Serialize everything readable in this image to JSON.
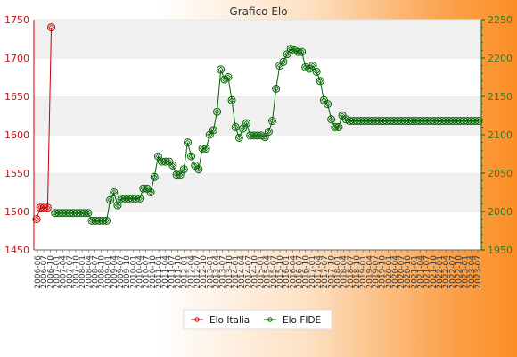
{
  "chart_data": {
    "type": "line",
    "title": "Grafico Elo",
    "y_left": {
      "ylim": [
        1450,
        1750
      ],
      "ticks": [
        "1450",
        "1500",
        "1550",
        "1600",
        "1650",
        "1700",
        "1750"
      ],
      "color": "#cc0000"
    },
    "y_right": {
      "ylim": [
        1950,
        2250
      ],
      "ticks": [
        "1950",
        "2000",
        "2050",
        "2100",
        "2150",
        "2200",
        "2250"
      ],
      "color": "#006400"
    },
    "x_count": 121,
    "series": [
      {
        "name": "Elo Italia",
        "axis": "left",
        "color": "#cc0000",
        "points": [
          [
            0,
            1490
          ],
          [
            1,
            1505
          ],
          [
            2,
            1505
          ],
          [
            3,
            1505
          ],
          [
            4,
            1740
          ]
        ]
      },
      {
        "name": "Elo FIDE",
        "axis": "right",
        "color": "#006400",
        "points": [
          [
            5,
            1998
          ],
          [
            6,
            1998
          ],
          [
            7,
            1998
          ],
          [
            8,
            1998
          ],
          [
            9,
            1998
          ],
          [
            10,
            1998
          ],
          [
            11,
            1998
          ],
          [
            12,
            1998
          ],
          [
            13,
            1998
          ],
          [
            14,
            1998
          ],
          [
            15,
            1988
          ],
          [
            16,
            1988
          ],
          [
            17,
            1988
          ],
          [
            18,
            1988
          ],
          [
            19,
            1988
          ],
          [
            20,
            2015
          ],
          [
            21,
            2025
          ],
          [
            22,
            2008
          ],
          [
            23,
            2017
          ],
          [
            24,
            2017
          ],
          [
            25,
            2017
          ],
          [
            26,
            2017
          ],
          [
            27,
            2017
          ],
          [
            28,
            2017
          ],
          [
            29,
            2030
          ],
          [
            30,
            2030
          ],
          [
            31,
            2025
          ],
          [
            32,
            2045
          ],
          [
            33,
            2072
          ],
          [
            34,
            2065
          ],
          [
            35,
            2065
          ],
          [
            36,
            2065
          ],
          [
            37,
            2060
          ],
          [
            38,
            2048
          ],
          [
            39,
            2048
          ],
          [
            40,
            2055
          ],
          [
            41,
            2090
          ],
          [
            42,
            2072
          ],
          [
            43,
            2060
          ],
          [
            44,
            2055
          ],
          [
            45,
            2082
          ],
          [
            46,
            2082
          ],
          [
            47,
            2100
          ],
          [
            48,
            2106
          ],
          [
            49,
            2130
          ],
          [
            50,
            2185
          ],
          [
            51,
            2172
          ],
          [
            52,
            2175
          ],
          [
            53,
            2145
          ],
          [
            54,
            2110
          ],
          [
            55,
            2096
          ],
          [
            56,
            2108
          ],
          [
            57,
            2115
          ],
          [
            58,
            2099
          ],
          [
            59,
            2099
          ],
          [
            60,
            2099
          ],
          [
            61,
            2099
          ],
          [
            62,
            2097
          ],
          [
            63,
            2104
          ],
          [
            64,
            2118
          ],
          [
            65,
            2160
          ],
          [
            66,
            2190
          ],
          [
            67,
            2195
          ],
          [
            68,
            2205
          ],
          [
            69,
            2212
          ],
          [
            70,
            2210
          ],
          [
            71,
            2208
          ],
          [
            72,
            2208
          ],
          [
            73,
            2188
          ],
          [
            74,
            2186
          ],
          [
            75,
            2190
          ],
          [
            76,
            2182
          ],
          [
            77,
            2170
          ],
          [
            78,
            2145
          ],
          [
            79,
            2140
          ],
          [
            80,
            2120
          ],
          [
            81,
            2110
          ],
          [
            82,
            2110
          ],
          [
            83,
            2125
          ],
          [
            84,
            2120
          ],
          [
            85,
            2118
          ],
          [
            86,
            2118
          ],
          [
            87,
            2118
          ],
          [
            88,
            2118
          ],
          [
            89,
            2118
          ],
          [
            90,
            2118
          ],
          [
            91,
            2118
          ],
          [
            92,
            2118
          ],
          [
            93,
            2118
          ],
          [
            94,
            2118
          ],
          [
            95,
            2118
          ],
          [
            96,
            2118
          ],
          [
            97,
            2118
          ],
          [
            98,
            2118
          ],
          [
            99,
            2118
          ],
          [
            100,
            2118
          ],
          [
            101,
            2118
          ],
          [
            102,
            2118
          ],
          [
            103,
            2118
          ],
          [
            104,
            2118
          ],
          [
            105,
            2118
          ],
          [
            106,
            2118
          ],
          [
            107,
            2118
          ],
          [
            108,
            2118
          ],
          [
            109,
            2118
          ],
          [
            110,
            2118
          ],
          [
            111,
            2118
          ],
          [
            112,
            2118
          ],
          [
            113,
            2118
          ],
          [
            114,
            2118
          ],
          [
            115,
            2118
          ],
          [
            116,
            2118
          ],
          [
            117,
            2118
          ],
          [
            118,
            2118
          ],
          [
            119,
            2118
          ],
          [
            120,
            2118
          ]
        ]
      }
    ],
    "x_tick_labels": [
      "2006-06",
      "2006-07",
      "2006-10",
      "2007-01",
      "2007-04",
      "2007-07",
      "2007-10",
      "2008-01",
      "2008-04",
      "2008-07",
      "2008-10",
      "2009-01",
      "2009-04",
      "2009-07",
      "2009-10",
      "2010-01",
      "2010-04",
      "2010-07",
      "2010-10",
      "2011-01",
      "2011-04",
      "2011-07",
      "2011-10",
      "2012-01",
      "2012-04",
      "2012-07",
      "2012-10",
      "2013-01",
      "2013-04",
      "2013-07",
      "2013-10",
      "2014-01",
      "2014-04",
      "2014-07",
      "2014-10",
      "2015-01",
      "2015-04",
      "2015-07",
      "2015-10",
      "2016-01",
      "2016-04",
      "2016-07",
      "2016-10",
      "2017-01",
      "2017-04",
      "2017-07",
      "2017-10",
      "2018-01",
      "2018-04",
      "2018-07",
      "2018-10",
      "2019-01",
      "2019-04",
      "2019-07",
      "2019-10",
      "2020-01",
      "2020-04",
      "2020-07",
      "2020-10",
      "2021-01",
      "2021-04",
      "2021-07",
      "2021-10",
      "2022-01",
      "2022-04",
      "2022-07",
      "2022-10",
      "2023-01",
      "2023-04",
      "2023-07"
    ],
    "grid": "horizontal bands",
    "legend": "bottom-center"
  }
}
